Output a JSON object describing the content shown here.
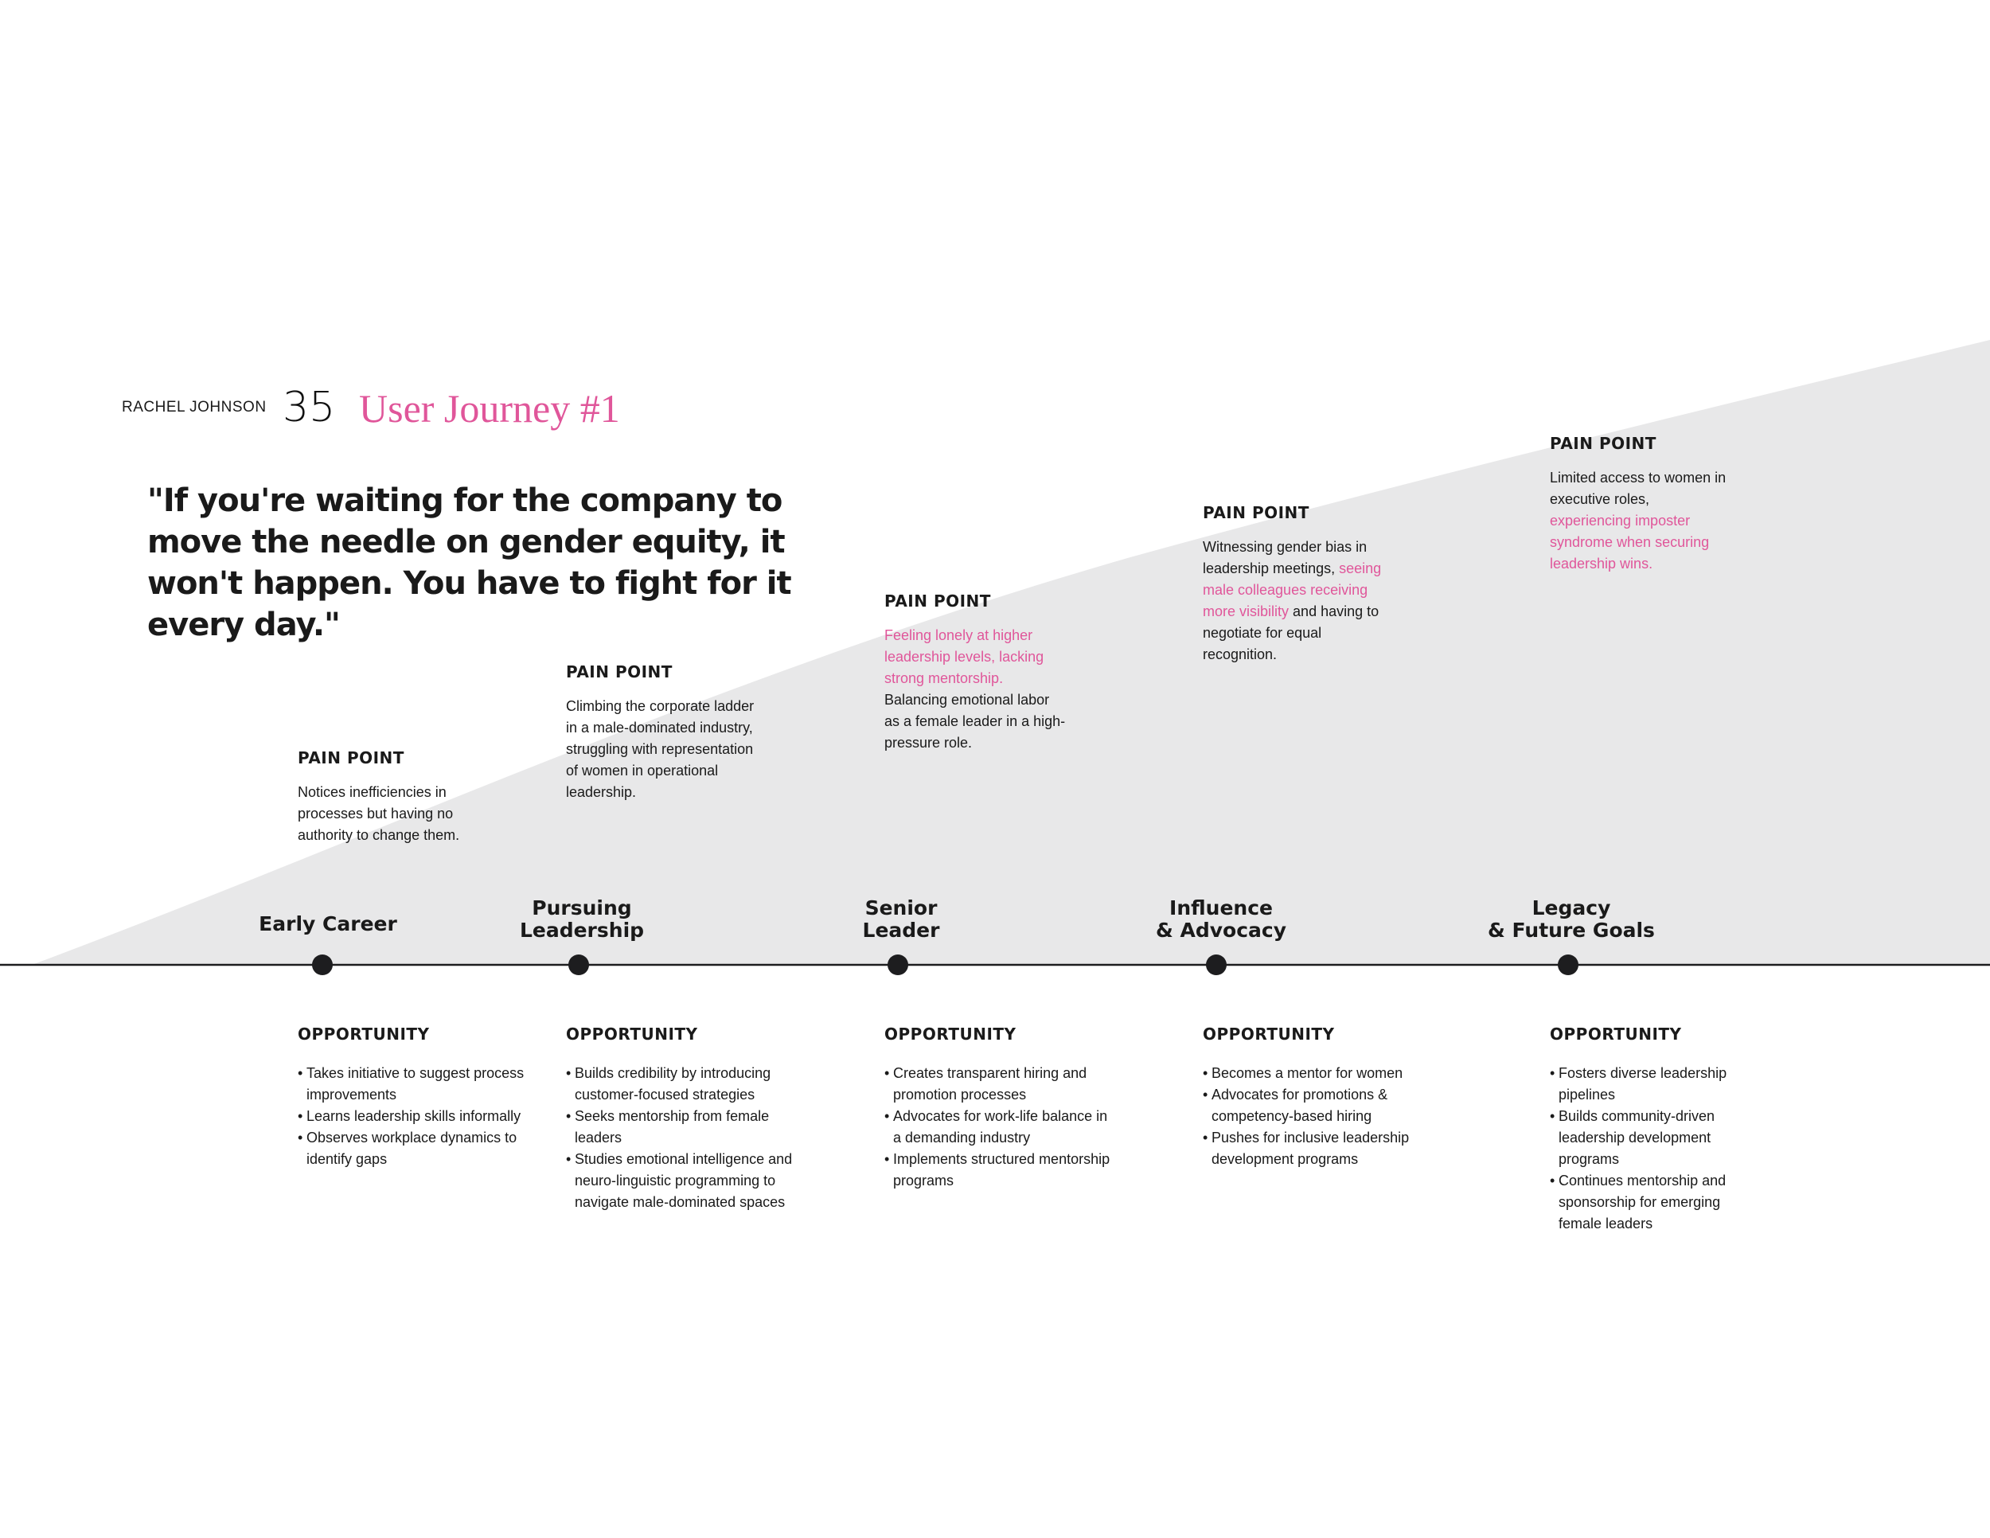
{
  "header": {
    "author": "RACHEL JOHNSON",
    "page_number": "35",
    "title": "User Journey #1"
  },
  "quote": "\"If you're waiting for the company to move the needle on gender equity, it won't happen. You have to fight for it every day.\"",
  "colors": {
    "accent": "#e0569a",
    "background_band": "#e8e8e9",
    "text": "#1a1a1a"
  },
  "stages": [
    {
      "title": "Early Career",
      "pain_point": {
        "heading": "PAIN POINT",
        "normal_text": "Notices inefficiencies in processes but having no authority to change them.",
        "highlight_text": "",
        "normal_text_2": ""
      },
      "opportunity": {
        "heading": "OPPORTUNITY",
        "items": [
          "Takes initiative to suggest process improvements",
          "Learns leadership skills informally",
          "Observes workplace dynamics to identify gaps"
        ]
      }
    },
    {
      "title": "Pursuing\nLeadership",
      "pain_point": {
        "heading": "PAIN POINT",
        "normal_text": "Climbing the corporate ladder in a male-dominated industry, struggling with representation of women in operational leadership.",
        "highlight_text": "",
        "normal_text_2": ""
      },
      "opportunity": {
        "heading": "OPPORTUNITY",
        "items": [
          "Builds credibility by introducing customer-focused strategies",
          "Seeks mentorship from female leaders",
          "Studies emotional intelligence and neuro-linguistic programming to navigate male-dominated spaces"
        ]
      }
    },
    {
      "title": "Senior\nLeader",
      "pain_point": {
        "heading": "PAIN POINT",
        "normal_text": "",
        "highlight_text": "Feeling lonely at higher leadership levels, lacking strong mentorship.",
        "normal_text_2": "Balancing emotional labor as a female leader in a high-pressure role."
      },
      "opportunity": {
        "heading": "OPPORTUNITY",
        "items": [
          "Creates transparent hiring and promotion processes",
          "Advocates for work-life balance in a demanding industry",
          "Implements structured mentorship programs"
        ]
      }
    },
    {
      "title": "Influence\n& Advocacy",
      "pain_point": {
        "heading": "PAIN POINT",
        "normal_text": "Witnessing gender bias in leadership meetings,",
        "highlight_text": "seeing male colleagues receiving more visibility",
        "normal_text_2": "and having to negotiate for equal recognition."
      },
      "opportunity": {
        "heading": "OPPORTUNITY",
        "items": [
          "Becomes a mentor for women",
          "Advocates for promotions & competency-based hiring",
          "Pushes for inclusive leadership development programs"
        ]
      }
    },
    {
      "title": "Legacy\n& Future Goals",
      "pain_point": {
        "heading": "PAIN POINT",
        "normal_text": "Limited access to women in executive roles,",
        "highlight_text": "experiencing imposter syndrome when securing leadership wins.",
        "normal_text_2": ""
      },
      "opportunity": {
        "heading": "OPPORTUNITY",
        "items": [
          "Fosters diverse leadership pipelines",
          "Builds community-driven leadership development programs",
          "Continues mentorship and sponsorship for emerging female leaders"
        ]
      }
    }
  ]
}
